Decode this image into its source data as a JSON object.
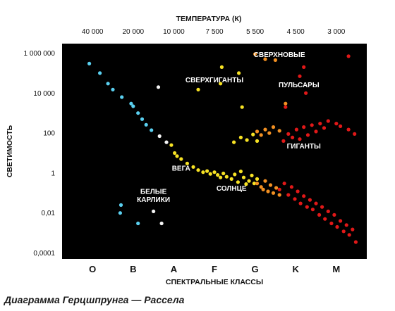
{
  "caption": "Диаграмма Герцшпрунга — Рассела",
  "chart_data": {
    "type": "scatter",
    "title": "",
    "top_axis": {
      "label": "ТЕМПЕРАТУРА (К)",
      "ticks": [
        "40 000",
        "20 000",
        "10 000",
        "7 500",
        "5 500",
        "4 500",
        "3 000"
      ]
    },
    "xlabel": "СПЕКТРАЛЬНЫЕ КЛАССЫ",
    "ylabel": "СВЕТИМОСТЬ",
    "categories": [
      "O",
      "B",
      "A",
      "F",
      "G",
      "K",
      "M"
    ],
    "xlim": [
      -0.75,
      6.75
    ],
    "y_scale": "log",
    "ylim": [
      5e-05,
      3000000
    ],
    "yticks": [
      {
        "value": 1000000,
        "label": "1 000 000"
      },
      {
        "value": 10000,
        "label": "10 000"
      },
      {
        "value": 100,
        "label": "100"
      },
      {
        "value": 1,
        "label": "1"
      },
      {
        "value": 0.01,
        "label": "0,01"
      },
      {
        "value": 0.0001,
        "label": "0,0001"
      }
    ],
    "grid": false,
    "background": "#000000",
    "colors": {
      "blue": "#5ad0f0",
      "white": "#f4f4f4",
      "yellow": "#f7e224",
      "orange": "#f29022",
      "red": "#e01818"
    },
    "annotations": [
      {
        "text": "СВЕРХГИГАНТЫ",
        "x": 3.0,
        "y": 35000
      },
      {
        "text": "СВЕРХНОВЫЕ",
        "x": 4.6,
        "y": 630000
      },
      {
        "text": "ПУЛЬСАРЫ",
        "x": 5.08,
        "y": 20000
      },
      {
        "text": "ГИГАНТЫ",
        "x": 5.2,
        "y": 17
      },
      {
        "text": "ВЕГА",
        "x": 2.18,
        "y": 1.3
      },
      {
        "text": "СОЛНЦЕ",
        "x": 3.42,
        "y": 0.13
      },
      {
        "text": "БЕЛЫЕ",
        "x": 1.5,
        "y": 0.09
      },
      {
        "text": "КАРЛИКИ",
        "x": 1.5,
        "y": 0.035
      }
    ],
    "series": [
      {
        "color": "blue",
        "x": [
          -0.08,
          0.18,
          0.38,
          0.5,
          0.72,
          0.95,
          1.0,
          1.12,
          1.22,
          1.32,
          1.45,
          0.7,
          0.68,
          1.12
        ],
        "y": [
          300000,
          100000,
          30000,
          15000,
          6300,
          3000,
          2200,
          1000,
          500,
          260,
          140,
          0.025,
          0.01,
          0.003
        ]
      },
      {
        "color": "white",
        "x": [
          1.65,
          1.82,
          1.62,
          1.5,
          1.7
        ],
        "y": [
          70,
          35,
          20000,
          0.012,
          0.003
        ]
      },
      {
        "color": "yellow",
        "x": [
          1.94,
          2.02,
          2.08,
          2.18,
          2.33,
          2.48,
          2.6,
          2.72,
          2.82,
          2.9,
          3.0,
          3.08,
          3.15,
          3.22,
          3.3,
          3.42,
          3.5,
          3.58,
          3.65,
          3.72,
          3.78,
          3.85,
          3.92,
          3.98,
          4.05,
          3.48,
          3.65,
          3.8,
          3.95,
          4.05,
          3.18,
          2.6,
          3.15,
          3.6,
          3.68
        ],
        "y": [
          25,
          10,
          7,
          5,
          3,
          2,
          1.4,
          1.1,
          1.25,
          0.9,
          1.1,
          0.8,
          0.6,
          0.95,
          0.65,
          0.5,
          0.85,
          0.35,
          1.2,
          0.6,
          0.28,
          0.4,
          0.75,
          0.3,
          0.5,
          35,
          60,
          45,
          85,
          40,
          200000,
          15000,
          30000,
          100000,
          2000
        ],
        "note": "Sun and Vega on main sequence"
      },
      {
        "color": "orange",
        "x": [
          4.05,
          4.15,
          4.2,
          4.25,
          4.32,
          4.38,
          4.45,
          4.52,
          4.6,
          4.05,
          4.15,
          4.25,
          4.35,
          4.45,
          4.6,
          4.0,
          4.25,
          4.5,
          4.75
        ],
        "y": [
          0.3,
          0.2,
          0.15,
          0.4,
          0.12,
          0.25,
          0.1,
          0.18,
          0.08,
          120,
          80,
          150,
          100,
          200,
          130,
          900000,
          500000,
          450000,
          3000
        ],
        "note": "supernovae and transitional stars"
      },
      {
        "color": "red",
        "x": [
          4.6,
          4.72,
          4.82,
          4.9,
          4.98,
          5.05,
          5.12,
          5.2,
          5.28,
          5.35,
          5.42,
          5.5,
          5.58,
          5.65,
          5.72,
          5.8,
          5.88,
          5.95,
          6.02,
          6.1,
          6.18,
          6.25,
          6.32,
          6.4,
          6.48,
          4.7,
          4.82,
          4.92,
          5.02,
          5.1,
          5.2,
          5.3,
          5.4,
          5.5,
          5.6,
          5.7,
          5.8,
          6.0,
          6.1,
          6.3,
          6.45,
          4.75,
          5.1,
          5.2,
          5.25,
          6.3
        ],
        "y": [
          0.15,
          0.3,
          0.08,
          0.2,
          0.05,
          0.12,
          0.03,
          0.07,
          0.02,
          0.045,
          0.015,
          0.03,
          0.008,
          0.02,
          0.005,
          0.012,
          0.003,
          0.008,
          0.002,
          0.004,
          0.0012,
          0.0025,
          0.0008,
          0.0015,
          0.00035,
          40,
          90,
          60,
          150,
          50,
          200,
          80,
          250,
          120,
          300,
          180,
          400,
          300,
          220,
          150,
          90,
          2000,
          70000,
          200000,
          10000,
          700000
        ],
        "note": "red dwarfs, red giants, supergiants, pulsars"
      }
    ]
  }
}
